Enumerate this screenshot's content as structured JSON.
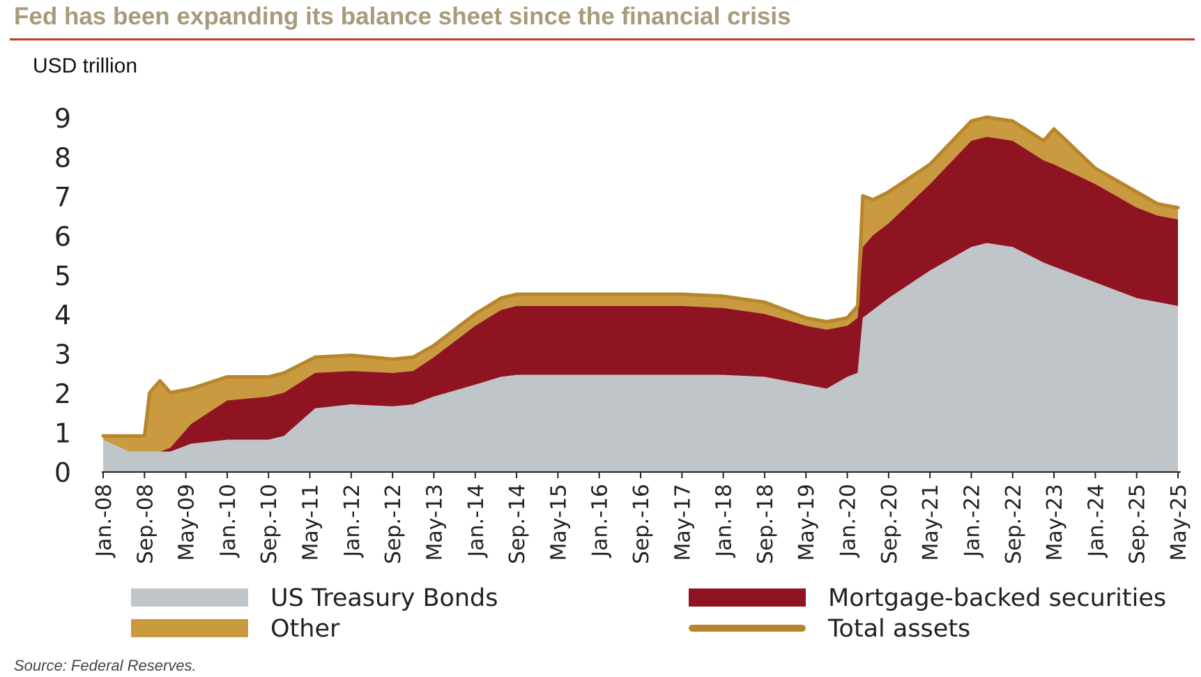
{
  "header": {
    "title": "Fed has been expanding its balance sheet since the financial crisis",
    "unit_label": "USD trillion"
  },
  "source": "Source: Federal Reserves.",
  "colors": {
    "treasury": "#c0c5c9",
    "mbs": "#8f1421",
    "other": "#c99a3f",
    "total": "#b8862a",
    "title": "#a89a7a",
    "rule": "#c0392b"
  },
  "chart_data": {
    "type": "area",
    "ylabel": "USD trillion",
    "ylim": [
      0,
      9
    ],
    "yticks": [
      0,
      1,
      2,
      3,
      4,
      5,
      6,
      7,
      8,
      9
    ],
    "xticks": [
      "Jan.-08",
      "Sep.-08",
      "May-09",
      "Jan.-10",
      "Sep.-10",
      "May-11",
      "Jan.-12",
      "Sep.-12",
      "May-13",
      "Jan.-14",
      "Sep.-14",
      "May-15",
      "Jan.-16",
      "Sep.-16",
      "May-17",
      "Jan.-18",
      "Sep.-18",
      "May-19",
      "Jan.-20",
      "Sep.-20",
      "May-21",
      "Jan.-22",
      "Sep.-22",
      "May-23",
      "Jan.-24",
      "Sep.-25",
      "May-25"
    ],
    "grid": false,
    "legend_position": "bottom",
    "x": [
      "2008-01",
      "2008-06",
      "2008-09",
      "2008-10",
      "2008-12",
      "2009-02",
      "2009-06",
      "2010-01",
      "2010-09",
      "2010-12",
      "2011-06",
      "2012-01",
      "2012-09",
      "2013-01",
      "2013-05",
      "2014-01",
      "2014-06",
      "2014-09",
      "2015-05",
      "2016-01",
      "2016-09",
      "2017-05",
      "2018-01",
      "2018-09",
      "2019-05",
      "2019-09",
      "2020-01",
      "2020-03",
      "2020-04",
      "2020-06",
      "2020-09",
      "2021-05",
      "2022-01",
      "2022-04",
      "2022-09",
      "2023-03",
      "2023-05",
      "2024-01",
      "2024-09",
      "2025-01",
      "2025-05"
    ],
    "series": [
      {
        "name": "US Treasury Bonds",
        "values": [
          0.8,
          0.5,
          0.5,
          0.5,
          0.5,
          0.5,
          0.7,
          0.8,
          0.8,
          0.9,
          1.6,
          1.7,
          1.65,
          1.7,
          1.9,
          2.2,
          2.4,
          2.45,
          2.45,
          2.45,
          2.45,
          2.45,
          2.45,
          2.4,
          2.2,
          2.1,
          2.4,
          2.5,
          3.9,
          4.1,
          4.4,
          5.1,
          5.7,
          5.8,
          5.7,
          5.3,
          5.2,
          4.8,
          4.4,
          4.3,
          4.2
        ]
      },
      {
        "name": "Mortgage-backed securities",
        "values": [
          0.0,
          0.0,
          0.0,
          0.0,
          0.0,
          0.1,
          0.5,
          1.0,
          1.1,
          1.1,
          0.9,
          0.85,
          0.85,
          0.85,
          1.0,
          1.5,
          1.7,
          1.75,
          1.75,
          1.75,
          1.75,
          1.75,
          1.7,
          1.6,
          1.5,
          1.5,
          1.3,
          1.4,
          1.8,
          1.9,
          1.9,
          2.2,
          2.7,
          2.7,
          2.7,
          2.6,
          2.6,
          2.5,
          2.3,
          2.2,
          2.2
        ]
      },
      {
        "name": "Other",
        "values": [
          0.1,
          0.4,
          0.4,
          1.5,
          1.8,
          1.4,
          0.9,
          0.6,
          0.5,
          0.5,
          0.4,
          0.4,
          0.35,
          0.35,
          0.3,
          0.3,
          0.3,
          0.3,
          0.3,
          0.3,
          0.3,
          0.3,
          0.3,
          0.3,
          0.2,
          0.2,
          0.2,
          0.3,
          1.3,
          0.9,
          0.8,
          0.5,
          0.5,
          0.5,
          0.5,
          0.5,
          0.9,
          0.4,
          0.4,
          0.3,
          0.3
        ]
      },
      {
        "name": "Total assets",
        "values": [
          0.9,
          0.9,
          0.9,
          2.0,
          2.3,
          2.0,
          2.1,
          2.4,
          2.4,
          2.5,
          2.9,
          2.95,
          2.85,
          2.9,
          3.2,
          4.0,
          4.4,
          4.5,
          4.5,
          4.5,
          4.5,
          4.5,
          4.45,
          4.3,
          3.9,
          3.8,
          3.9,
          4.2,
          7.0,
          6.9,
          7.1,
          7.8,
          8.9,
          9.0,
          8.9,
          8.4,
          8.7,
          7.7,
          7.1,
          6.8,
          6.7
        ]
      }
    ]
  },
  "legend": [
    {
      "label": "US Treasury Bonds"
    },
    {
      "label": "Mortgage-backed securities"
    },
    {
      "label": "Other"
    },
    {
      "label": "Total assets"
    }
  ]
}
